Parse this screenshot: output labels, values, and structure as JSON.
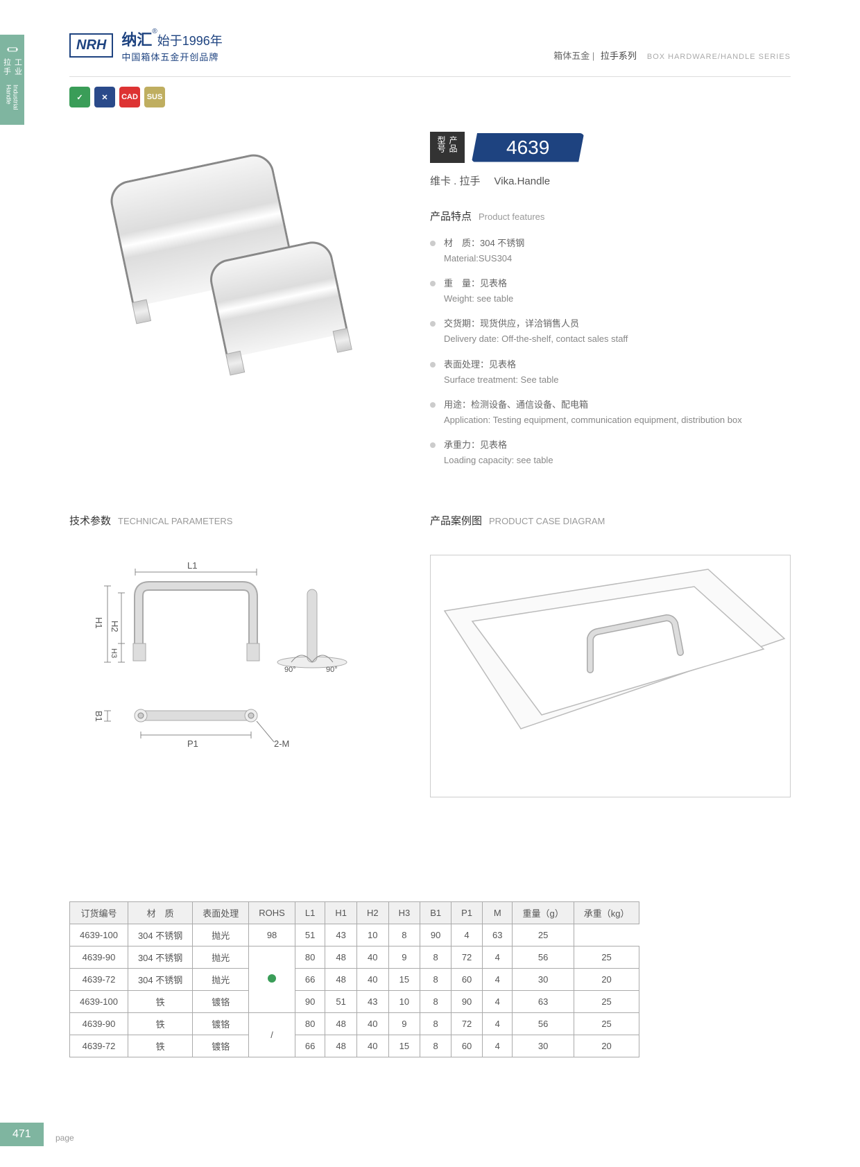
{
  "sideTab": {
    "cn": "工业拉手",
    "en": "Industrial Handle"
  },
  "header": {
    "logo": "NRH",
    "brandCn": "纳汇",
    "reg": "®",
    "yearCn": "始于1996年",
    "sub": "中国箱体五金开创品牌",
    "rightCn1": "箱体五金",
    "rightCn2": "拉手系列",
    "rightEn": "BOX HARDWARE/HANDLE SERIES"
  },
  "badges": [
    "✓",
    "✕",
    "CAD",
    "SUS"
  ],
  "model": {
    "labelCn": "产品型号",
    "number": "4639",
    "nameCn": "维卡 . 拉手",
    "nameEn": "Vika.Handle"
  },
  "featuresTitle": {
    "cn": "产品特点",
    "en": "Product features"
  },
  "features": [
    {
      "cn": "材　质：304 不锈钢",
      "en": "Material:SUS304"
    },
    {
      "cn": "重　量：见表格",
      "en": "Weight: see table"
    },
    {
      "cn": "交货期：现货供应，详洽销售人员",
      "en": "Delivery date: Off-the-shelf, contact sales staff"
    },
    {
      "cn": "表面处理：见表格",
      "en": "Surface treatment: See table"
    },
    {
      "cn": "用途：检测设备、通信设备、配电箱",
      "en": "Application: Testing equipment, communication equipment, distribution box"
    },
    {
      "cn": "承重力：见表格",
      "en": "Loading capacity: see table"
    }
  ],
  "techTitle": {
    "cn": "技术参数",
    "en": "TECHNICAL PARAMETERS"
  },
  "caseTitle": {
    "cn": "产品案例图",
    "en": "PRODUCT CASE DIAGRAM"
  },
  "dims": {
    "L1": "L1",
    "H1": "H1",
    "H2": "H2",
    "H3": "H3",
    "B1": "B1",
    "P1": "P1",
    "M": "2-M",
    "a1": "90°",
    "a2": "90°"
  },
  "table": {
    "headers": [
      "订货编号",
      "材　质",
      "表面处理",
      "ROHS",
      "L1",
      "H1",
      "H2",
      "H3",
      "B1",
      "P1",
      "M",
      "重量（g）",
      "承重（kg）"
    ],
    "rows": [
      [
        "4639-100",
        "304 不锈钢",
        "抛光",
        "",
        "98",
        "51",
        "43",
        "10",
        "8",
        "90",
        "4",
        "63",
        "25"
      ],
      [
        "4639-90",
        "304 不锈钢",
        "抛光",
        "●",
        "80",
        "48",
        "40",
        "9",
        "8",
        "72",
        "4",
        "56",
        "25"
      ],
      [
        "4639-72",
        "304 不锈钢",
        "抛光",
        "",
        "66",
        "48",
        "40",
        "15",
        "8",
        "60",
        "4",
        "30",
        "20"
      ],
      [
        "4639-100",
        "铁",
        "镀铬",
        "",
        "90",
        "51",
        "43",
        "10",
        "8",
        "90",
        "4",
        "63",
        "25"
      ],
      [
        "4639-90",
        "铁",
        "镀铬",
        "/",
        "80",
        "48",
        "40",
        "9",
        "8",
        "72",
        "4",
        "56",
        "25"
      ],
      [
        "4639-72",
        "铁",
        "镀铬",
        "",
        "66",
        "48",
        "40",
        "15",
        "8",
        "60",
        "4",
        "30",
        "20"
      ]
    ]
  },
  "pageNum": "471",
  "pageLabel": "page"
}
